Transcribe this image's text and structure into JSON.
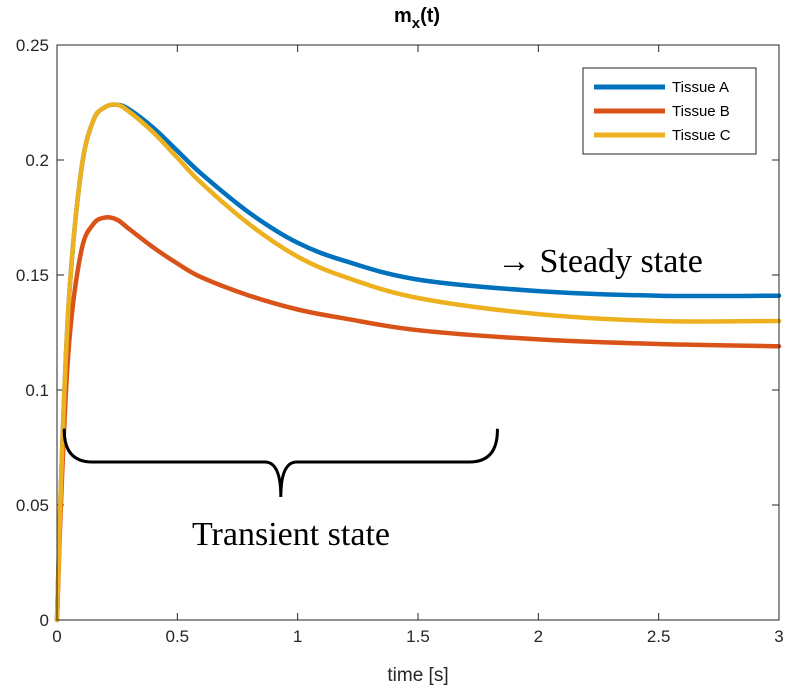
{
  "chart_data": {
    "type": "line",
    "title": "m",
    "title_sub": "x",
    "title_suffix": "(t)",
    "xlabel": "time [s]",
    "ylabel": "",
    "xlim": [
      0,
      3
    ],
    "ylim": [
      0,
      0.25
    ],
    "xticks": [
      "0",
      "0.5",
      "1",
      "1.5",
      "2",
      "2.5",
      "3"
    ],
    "yticks": [
      "0",
      "0.05",
      "0.1",
      "0.15",
      "0.2",
      "0.25"
    ],
    "grid": false,
    "legend_position": "top-right",
    "x": [
      0,
      0.02,
      0.05,
      0.1,
      0.15,
      0.2,
      0.25,
      0.3,
      0.4,
      0.5,
      0.6,
      0.8,
      1.0,
      1.2,
      1.5,
      2.0,
      2.5,
      3.0
    ],
    "series": [
      {
        "name": "Tissue A",
        "color": "#0072BD",
        "values": [
          0,
          0.07,
          0.14,
          0.195,
          0.217,
          0.223,
          0.224,
          0.222,
          0.214,
          0.204,
          0.194,
          0.177,
          0.164,
          0.156,
          0.148,
          0.143,
          0.141,
          0.141
        ]
      },
      {
        "name": "Tissue B",
        "color": "#D95319",
        "values": [
          0,
          0.06,
          0.12,
          0.16,
          0.172,
          0.175,
          0.174,
          0.17,
          0.162,
          0.155,
          0.149,
          0.141,
          0.135,
          0.131,
          0.126,
          0.122,
          0.12,
          0.119
        ]
      },
      {
        "name": "Tissue C",
        "color": "#EDB120",
        "values": [
          0,
          0.07,
          0.14,
          0.195,
          0.217,
          0.223,
          0.224,
          0.221,
          0.212,
          0.201,
          0.19,
          0.172,
          0.158,
          0.149,
          0.14,
          0.133,
          0.13,
          0.13
        ]
      }
    ],
    "annotations": {
      "steady": "→ Steady state",
      "transient": "Transient state"
    },
    "brace_range": [
      0.03,
      1.83
    ]
  }
}
